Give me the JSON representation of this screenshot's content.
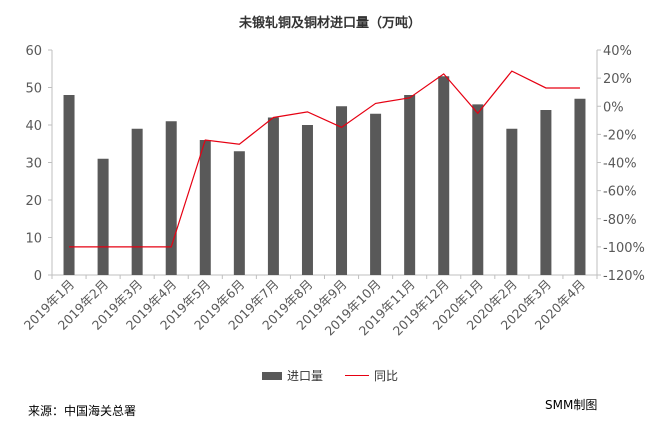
{
  "chart_data": {
    "type": "bar",
    "title": "未锻轧铜及铜材进口量（万吨）",
    "categories": [
      "2019年1月",
      "2019年2月",
      "2019年3月",
      "2019年4月",
      "2019年5月",
      "2019年6月",
      "2019年7月",
      "2019年8月",
      "2019年9月",
      "2019年10月",
      "2019年11月",
      "2019年12月",
      "2020年1月",
      "2020年2月",
      "2020年3月",
      "2020年4月"
    ],
    "series": [
      {
        "name": "进口量",
        "type": "bar",
        "axis": "left",
        "color": "#595959",
        "values": [
          48,
          31,
          39,
          41,
          36,
          33,
          42,
          40,
          45,
          43,
          48,
          53,
          45.5,
          39,
          44,
          47
        ]
      },
      {
        "name": "同比",
        "type": "line",
        "axis": "right",
        "color": "#e60012",
        "values": [
          -100,
          -100,
          -100,
          -100,
          -24,
          -27,
          -8,
          -4,
          -15,
          2,
          6,
          23,
          -5,
          25,
          13,
          13
        ]
      }
    ],
    "ylim_left": [
      0,
      60
    ],
    "yticks_left": [
      "0",
      "10",
      "20",
      "30",
      "40",
      "50",
      "60"
    ],
    "ylim_right": [
      -120,
      40
    ],
    "yticks_right": [
      "-120%",
      "-100%",
      "-80%",
      "-60%",
      "-40%",
      "-20%",
      "0%",
      "20%",
      "40%"
    ],
    "grid": false,
    "legend": "bottom"
  },
  "footer": {
    "source": "来源：中国海关总署",
    "credit": "SMM制图"
  }
}
